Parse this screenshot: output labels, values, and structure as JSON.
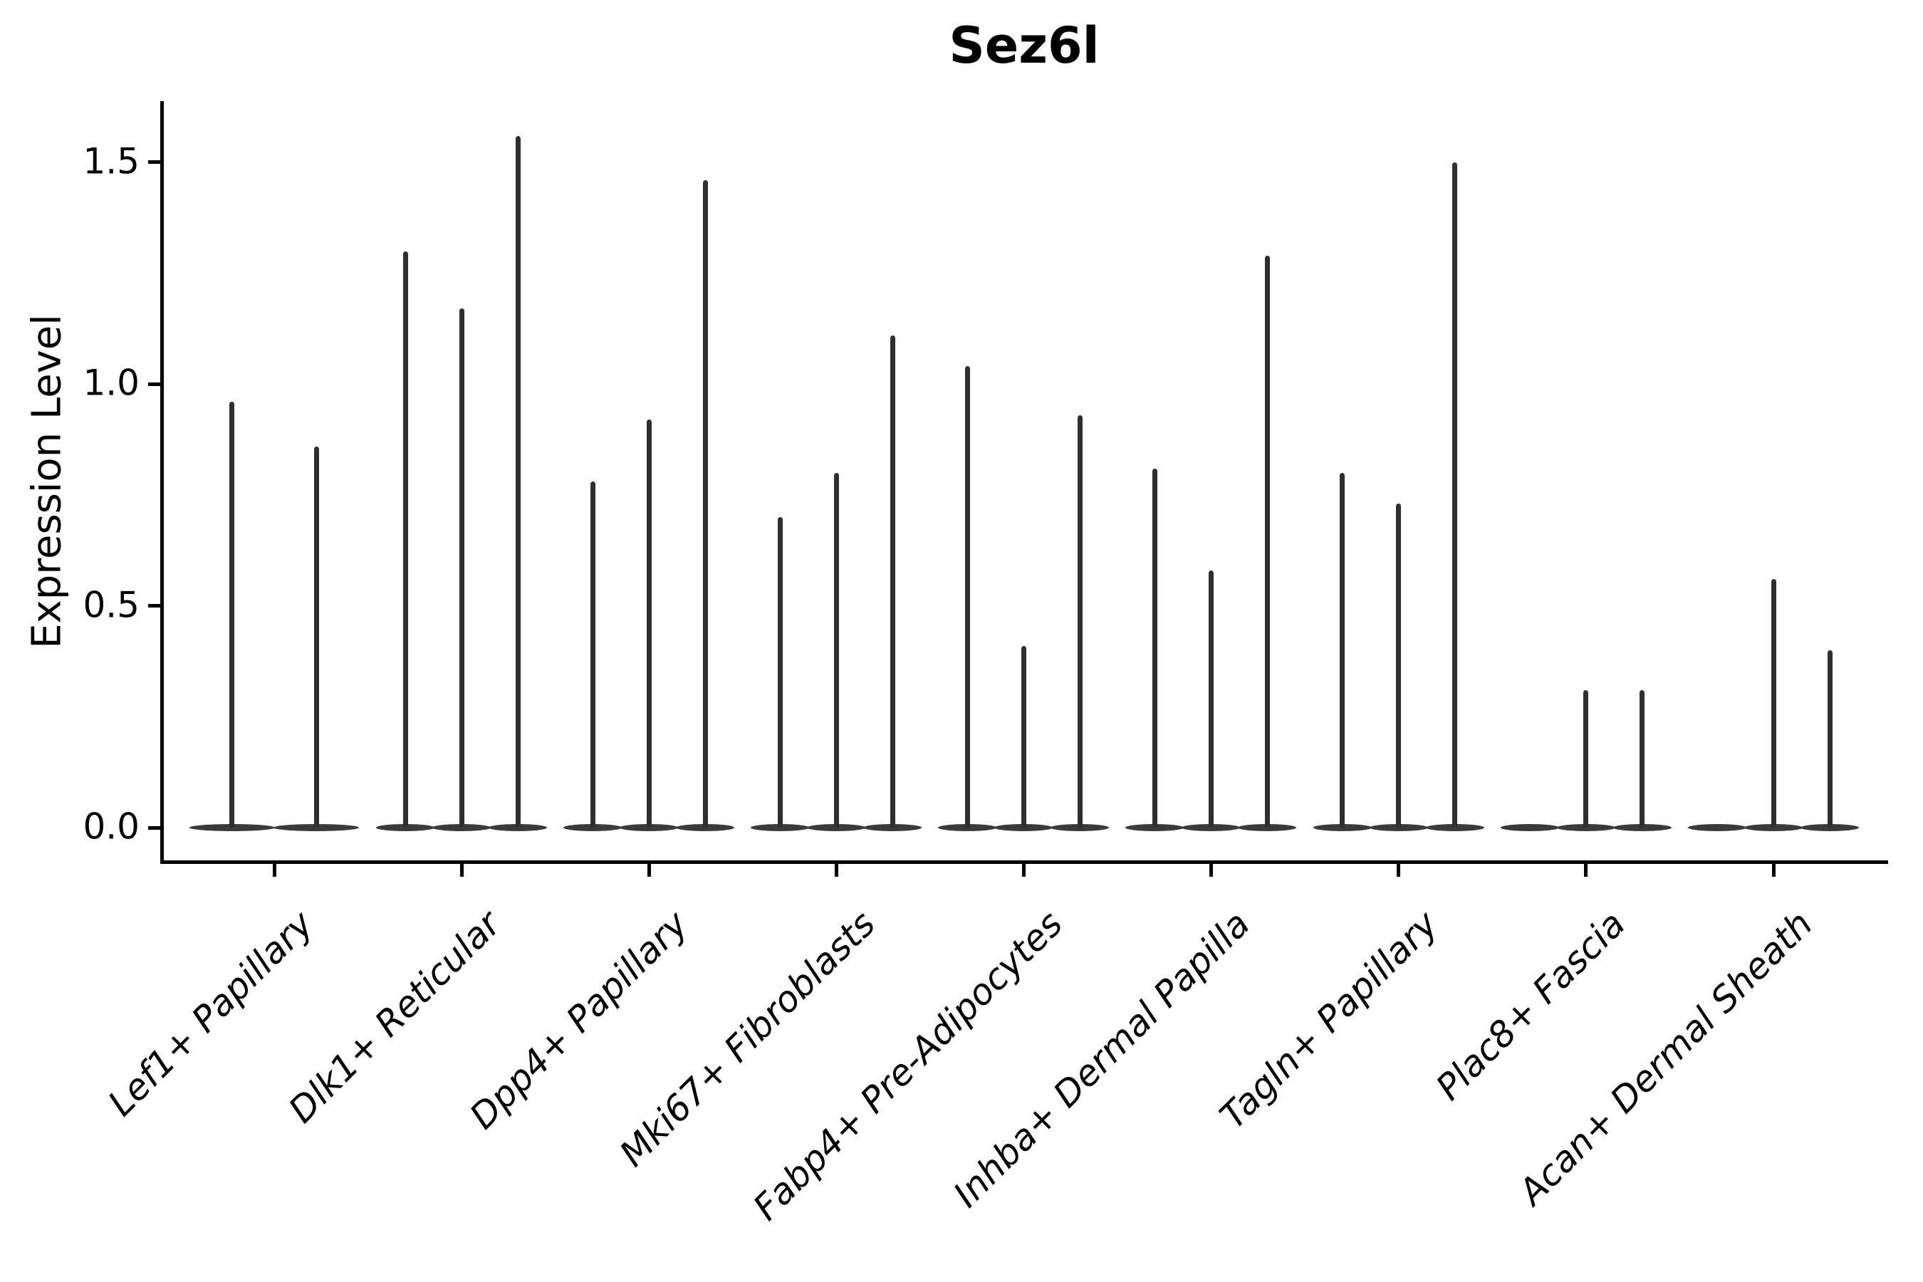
{
  "title": "Sez6l",
  "chart_data": {
    "type": "violin",
    "title": "Sez6l",
    "xlabel": "",
    "ylabel": "Expression Level",
    "ylim": [
      0,
      1.64
    ],
    "yticks": [
      0.0,
      0.5,
      1.0,
      1.5
    ],
    "ytick_labels": [
      "0.0",
      "0.5",
      "1.0",
      "1.5"
    ],
    "grid": false,
    "legend": "none",
    "violin_color": "#2f2f2f",
    "description": "Needle-shaped violins: distribution mass concentrated at 0 with a thin spike up to the maximum expression value; zero-max entries are flat pancakes at 0.",
    "categories": [
      "Lef1+ Papillary",
      "Dlk1+ Reticular",
      "Dpp4+ Papillary",
      "Mki67+ Fibroblasts",
      "Fabp4+ Pre-Adipocytes",
      "Inhba+ Dermal Papilla",
      "Tagln+ Papillary",
      "Plac8+ Fascia",
      "Acan+ Dermal Sheath"
    ],
    "violins_per_category": [
      2,
      3,
      3,
      3,
      3,
      3,
      3,
      3,
      3
    ],
    "max_expression": [
      [
        0.96,
        0.86
      ],
      [
        1.3,
        1.17,
        1.56
      ],
      [
        0.78,
        0.92,
        1.46
      ],
      [
        0.7,
        0.8,
        1.11
      ],
      [
        1.04,
        0.41,
        0.93
      ],
      [
        0.81,
        0.58,
        1.29
      ],
      [
        0.8,
        0.73,
        1.5
      ],
      [
        0.0,
        0.31,
        0.31
      ],
      [
        0.0,
        0.56,
        0.4
      ]
    ]
  }
}
